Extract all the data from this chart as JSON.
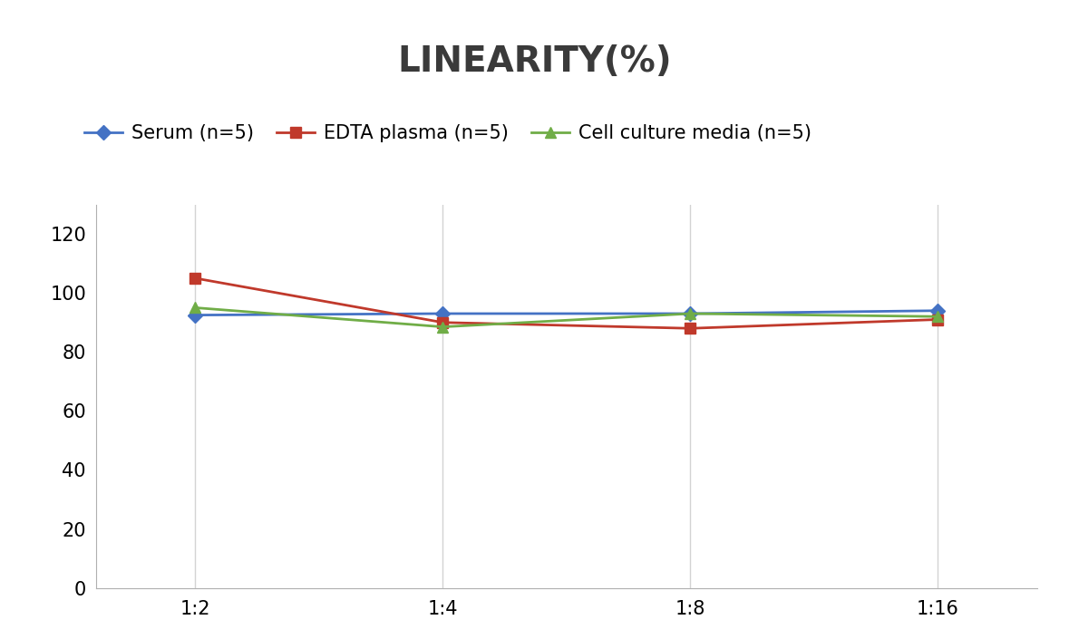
{
  "title": "LINEARITY(%)",
  "x_labels": [
    "1:2",
    "1:4",
    "1:8",
    "1:16"
  ],
  "series": [
    {
      "label": "Serum (n=5)",
      "values": [
        92.5,
        93.0,
        93.0,
        94.0
      ],
      "color": "#4472C4",
      "marker": "D",
      "marker_size": 8,
      "linewidth": 2.0
    },
    {
      "label": "EDTA plasma (n=5)",
      "values": [
        105.0,
        90.0,
        88.0,
        91.0
      ],
      "color": "#C0392B",
      "marker": "s",
      "marker_size": 8,
      "linewidth": 2.0
    },
    {
      "label": "Cell culture media (n=5)",
      "values": [
        95.0,
        88.5,
        93.0,
        92.0
      ],
      "color": "#70AD47",
      "marker": "^",
      "marker_size": 9,
      "linewidth": 2.0
    }
  ],
  "ylim": [
    0,
    130
  ],
  "yticks": [
    0,
    20,
    40,
    60,
    80,
    100,
    120
  ],
  "background_color": "#FFFFFF",
  "grid_color": "#D3D3D3",
  "title_fontsize": 28,
  "tick_fontsize": 15,
  "legend_fontsize": 15
}
